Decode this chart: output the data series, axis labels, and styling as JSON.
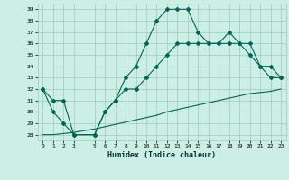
{
  "title": "",
  "xlabel": "Humidex (Indice chaleur)",
  "bg_color": "#cceee4",
  "grid_color": "#99ccbf",
  "line_color": "#006655",
  "x_ticks": [
    0,
    1,
    2,
    3,
    5,
    6,
    7,
    8,
    9,
    10,
    11,
    12,
    13,
    14,
    15,
    16,
    17,
    18,
    19,
    20,
    21,
    22,
    23
  ],
  "x_tick_labels": [
    "0",
    "1",
    "2",
    "3",
    "5",
    "6",
    "7",
    "8",
    "9",
    "10",
    "11",
    "12",
    "13",
    "14",
    "15",
    "16",
    "17",
    "18",
    "19",
    "20",
    "21",
    "22",
    "23"
  ],
  "ylim": [
    27.5,
    39.5
  ],
  "xlim": [
    -0.5,
    23.5
  ],
  "y_ticks": [
    28,
    29,
    30,
    31,
    32,
    33,
    34,
    35,
    36,
    37,
    38,
    39
  ],
  "line1_x": [
    0,
    1,
    2,
    3,
    5,
    6,
    7,
    8,
    9,
    10,
    11,
    12,
    13,
    14,
    15,
    16,
    17,
    18,
    19,
    20,
    21,
    22,
    23
  ],
  "line1_y": [
    32,
    31,
    31,
    28,
    28,
    30,
    31,
    33,
    34,
    36,
    38,
    39,
    39,
    39,
    37,
    36,
    36,
    37,
    36,
    36,
    34,
    33,
    33
  ],
  "line2_x": [
    0,
    1,
    2,
    3,
    5,
    6,
    7,
    8,
    9,
    10,
    11,
    12,
    13,
    14,
    15,
    16,
    17,
    18,
    19,
    20,
    21,
    22,
    23
  ],
  "line2_y": [
    32,
    30,
    29,
    28,
    28,
    30,
    31,
    32,
    32,
    33,
    34,
    35,
    36,
    36,
    36,
    36,
    36,
    36,
    36,
    35,
    34,
    34,
    33
  ],
  "line3_x": [
    0,
    1,
    2,
    3,
    5,
    6,
    7,
    8,
    9,
    10,
    11,
    12,
    13,
    14,
    15,
    16,
    17,
    18,
    19,
    20,
    21,
    22,
    23
  ],
  "line3_y": [
    28,
    28,
    28.1,
    28.2,
    28.5,
    28.7,
    28.9,
    29.1,
    29.3,
    29.5,
    29.7,
    30.0,
    30.2,
    30.4,
    30.6,
    30.8,
    31.0,
    31.2,
    31.4,
    31.6,
    31.7,
    31.8,
    32.0
  ]
}
